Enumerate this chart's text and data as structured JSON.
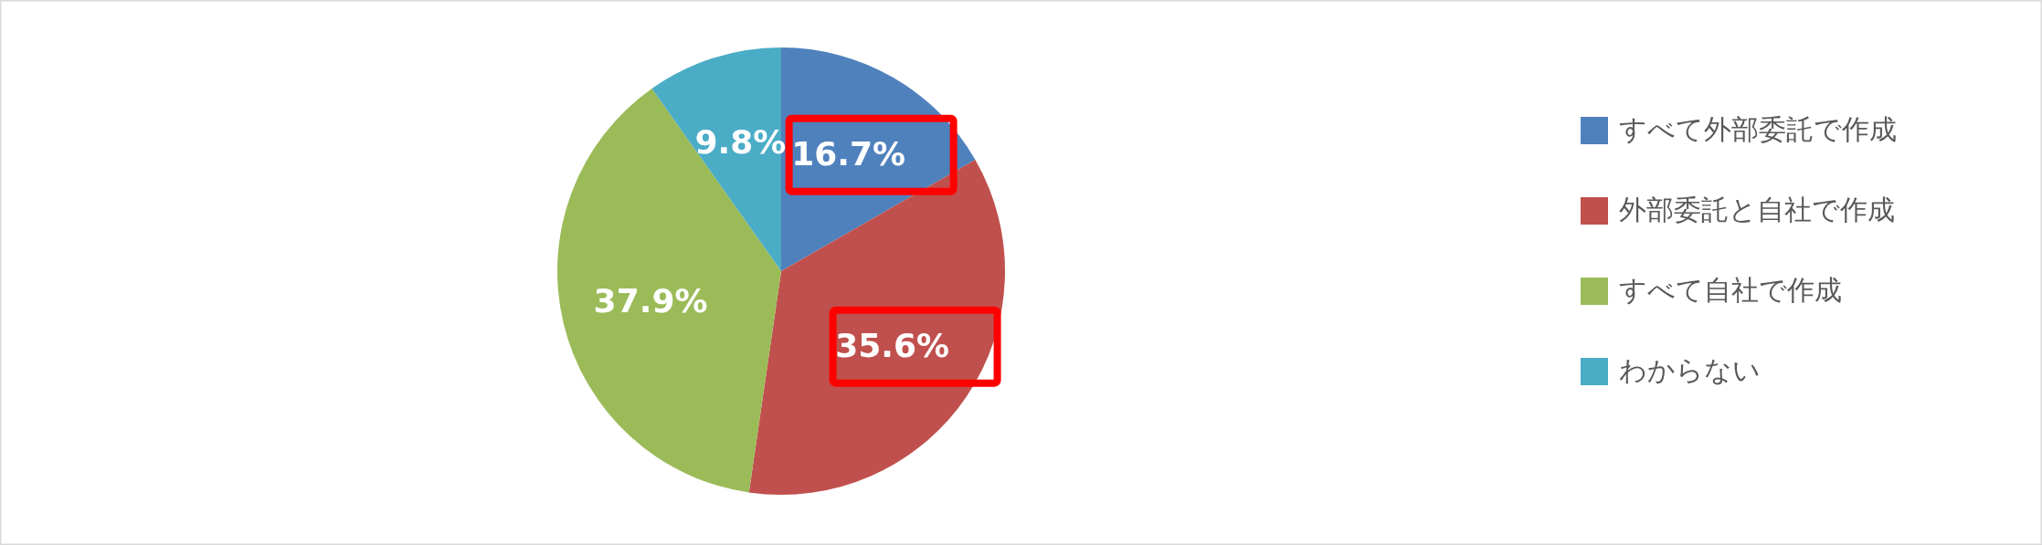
{
  "chart_data": {
    "type": "pie",
    "categories": [
      "すべて外部委託で作成",
      "外部委託と自社で作成",
      "すべて自社で作成",
      "わからない"
    ],
    "values": [
      16.7,
      35.6,
      37.9,
      9.8
    ],
    "colors": [
      "#4f81bd",
      "#c0504d",
      "#9bbb59",
      "#4bacc6"
    ],
    "value_labels": [
      "16.7%",
      "35.6%",
      "37.9%",
      "9.8%"
    ],
    "legend": "right"
  }
}
